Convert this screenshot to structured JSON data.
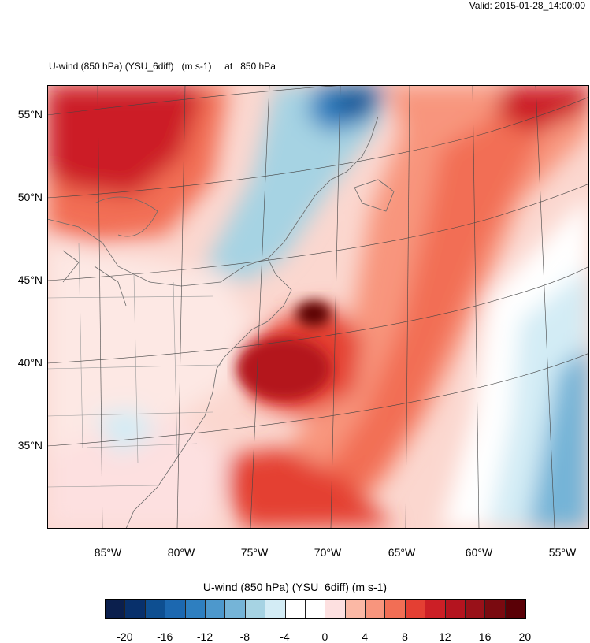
{
  "valid": "Valid: 2015-01-28_14:00:00",
  "title": "U-wind (850 hPa) (YSU_6diff)   (m s-1)     at   850 hPa",
  "lat_labels": [
    "55°N",
    "50°N",
    "45°N",
    "40°N",
    "35°N"
  ],
  "lon_labels": [
    "85°W",
    "80°W",
    "75°W",
    "70°W",
    "65°W",
    "60°W",
    "55°W"
  ],
  "colorbar": {
    "title": "U-wind (850 hPa) (YSU_6diff)  (m s-1)",
    "labels": [
      "-20",
      "-16",
      "-12",
      "-8",
      "-4",
      "0",
      "4",
      "8",
      "12",
      "16",
      "20"
    ],
    "colors": [
      "#0b1f4d",
      "#08306b",
      "#0e4f91",
      "#1c68b0",
      "#2e7fc0",
      "#4d98cc",
      "#75b4d7",
      "#a6d3e3",
      "#d3ecf5",
      "#ffffff",
      "#ffffff",
      "#fde0e0",
      "#fbb8a5",
      "#f8957d",
      "#f26e55",
      "#e43f33",
      "#cc1f26",
      "#b4141f",
      "#991119",
      "#7a0a10",
      "#5a0006"
    ]
  }
}
